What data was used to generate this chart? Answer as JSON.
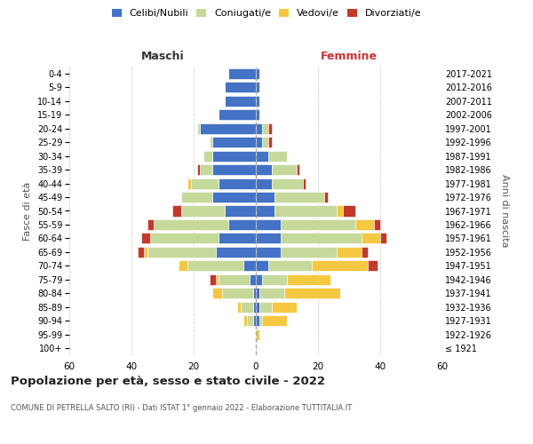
{
  "age_groups": [
    "100+",
    "95-99",
    "90-94",
    "85-89",
    "80-84",
    "75-79",
    "70-74",
    "65-69",
    "60-64",
    "55-59",
    "50-54",
    "45-49",
    "40-44",
    "35-39",
    "30-34",
    "25-29",
    "20-24",
    "15-19",
    "10-14",
    "5-9",
    "0-4"
  ],
  "birth_years": [
    "≤ 1921",
    "1922-1926",
    "1927-1931",
    "1932-1936",
    "1937-1941",
    "1942-1946",
    "1947-1951",
    "1952-1956",
    "1957-1961",
    "1962-1966",
    "1967-1971",
    "1972-1976",
    "1977-1981",
    "1982-1986",
    "1987-1991",
    "1992-1996",
    "1997-2001",
    "2002-2006",
    "2007-2011",
    "2012-2016",
    "2017-2021"
  ],
  "maschi": {
    "celibi": [
      0,
      0,
      1,
      1,
      1,
      2,
      4,
      13,
      12,
      9,
      10,
      14,
      12,
      14,
      14,
      14,
      18,
      12,
      10,
      10,
      9
    ],
    "coniugati": [
      0,
      0,
      2,
      4,
      10,
      10,
      18,
      22,
      22,
      24,
      14,
      10,
      9,
      4,
      3,
      1,
      1,
      0,
      0,
      0,
      0
    ],
    "vedovi": [
      0,
      0,
      1,
      1,
      3,
      1,
      3,
      1,
      0,
      0,
      0,
      0,
      1,
      0,
      0,
      0,
      0,
      0,
      0,
      0,
      0
    ],
    "divorziati": [
      0,
      0,
      0,
      0,
      0,
      2,
      0,
      2,
      3,
      2,
      3,
      0,
      0,
      1,
      0,
      0,
      0,
      0,
      0,
      0,
      0
    ]
  },
  "femmine": {
    "nubili": [
      0,
      0,
      1,
      1,
      1,
      2,
      4,
      8,
      8,
      8,
      6,
      6,
      5,
      5,
      4,
      2,
      2,
      1,
      1,
      1,
      1
    ],
    "coniugate": [
      0,
      0,
      1,
      4,
      8,
      8,
      14,
      18,
      26,
      24,
      20,
      16,
      10,
      8,
      6,
      2,
      2,
      0,
      0,
      0,
      0
    ],
    "vedove": [
      0,
      1,
      8,
      8,
      18,
      14,
      18,
      8,
      6,
      6,
      2,
      0,
      0,
      0,
      0,
      0,
      0,
      0,
      0,
      0,
      0
    ],
    "divorziate": [
      0,
      0,
      0,
      0,
      0,
      0,
      3,
      2,
      2,
      2,
      4,
      1,
      1,
      1,
      0,
      1,
      1,
      0,
      0,
      0,
      0
    ]
  },
  "colors": {
    "celibi": "#4472c4",
    "coniugati": "#c5d99b",
    "vedovi": "#f5c842",
    "divorziati": "#c0392b"
  },
  "xlim": 60,
  "title": "Popolazione per età, sesso e stato civile - 2022",
  "subtitle": "COMUNE DI PETRELLA SALTO (RI) - Dati ISTAT 1° gennaio 2022 - Elaborazione TUTTITALIA.IT",
  "ylabel_left": "Fasce di età",
  "ylabel_right": "Anni di nascita",
  "xlabel_maschi": "Maschi",
  "xlabel_femmine": "Femmine",
  "legend_labels": [
    "Celibi/Nubili",
    "Coniugati/e",
    "Vedovi/e",
    "Divorziati/e"
  ],
  "background_color": "#ffffff",
  "grid_color": "#cccccc"
}
